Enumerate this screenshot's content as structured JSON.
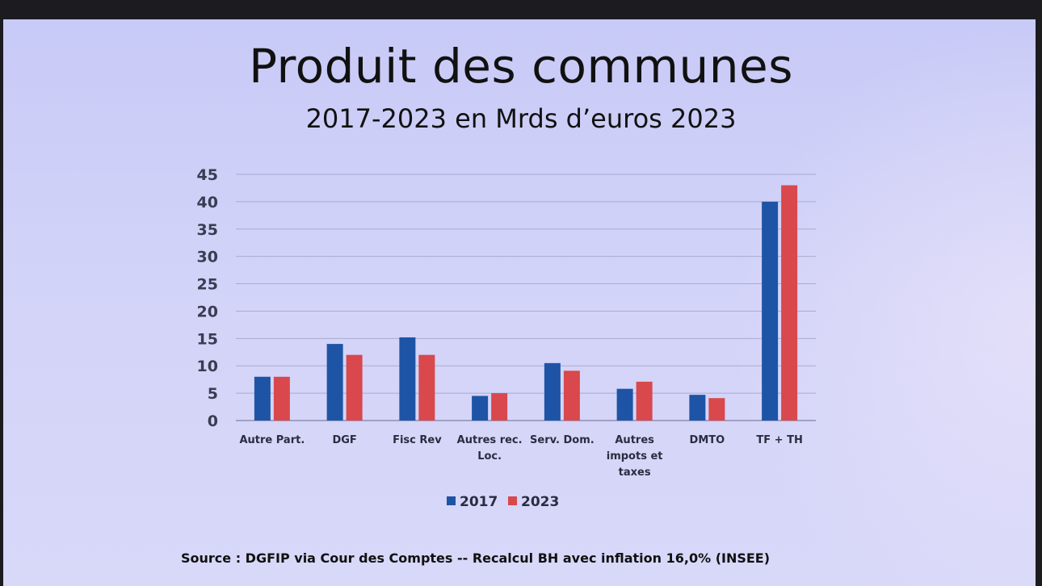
{
  "slide": {
    "title": "Produit des communes",
    "subtitle": "2017-2023 en Mrds d’euros 2023",
    "source": "Source : DGFIP via Cour des Comptes -- Recalcul BH avec inflation 16,0% (INSEE)"
  },
  "chart_data": {
    "type": "bar",
    "title": "Produit des communes",
    "subtitle": "2017-2023 en Mrds d’euros 2023",
    "categories": [
      [
        "Autre Part."
      ],
      [
        "DGF"
      ],
      [
        "Fisc Rev"
      ],
      [
        "Autres rec.",
        "Loc."
      ],
      [
        "Serv. Dom."
      ],
      [
        "Autres",
        "impots et",
        "taxes"
      ],
      [
        "DMTO"
      ],
      [
        "TF + TH"
      ]
    ],
    "series": [
      {
        "name": "2017",
        "color": "#1e54a6",
        "values": [
          8,
          14,
          15.2,
          4.5,
          10.5,
          5.8,
          4.7,
          40
        ]
      },
      {
        "name": "2023",
        "color": "#d8484c",
        "values": [
          8,
          12,
          12,
          5,
          9.1,
          7.1,
          4.1,
          43
        ]
      }
    ],
    "ylim": [
      0,
      45
    ],
    "yticks": [
      0,
      5,
      10,
      15,
      20,
      25,
      30,
      35,
      40,
      45
    ],
    "legend_position": "bottom-center",
    "grid": true
  }
}
